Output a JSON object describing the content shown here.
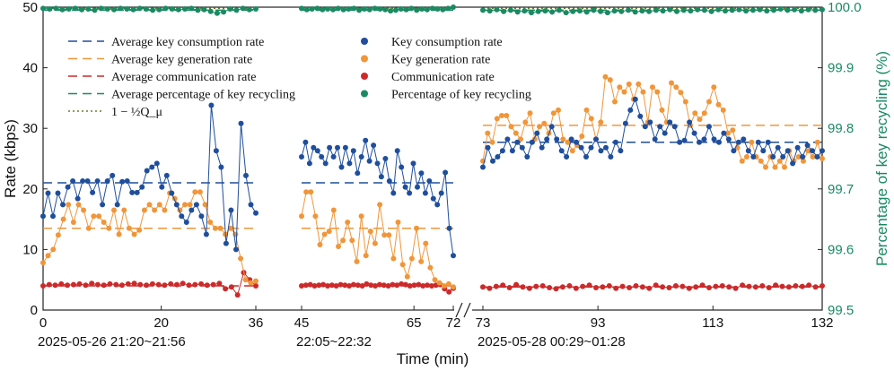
{
  "colors": {
    "kcr": "#1f4e9c",
    "kgr": "#f0963a",
    "comm": "#cc2a2a",
    "recyc": "#1a8a63",
    "recyc_axis": "#1a8a63"
  },
  "chart_data": {
    "type": "scatter",
    "title": "",
    "xlabel": "Time (min)",
    "ylabel_left": "Rate (kbps)",
    "ylabel_right": "Percentage of key recycling (%)",
    "ylim_left": [
      0,
      50
    ],
    "ylim_right": [
      99.5,
      100.0
    ],
    "left_ticks": [
      "0",
      "10",
      "20",
      "30",
      "40",
      "50"
    ],
    "right_ticks": [
      "99.5",
      "99.6",
      "99.7",
      "99.8",
      "99.9",
      "100.0"
    ],
    "grid": false,
    "legend_position": "top-left",
    "segments": [
      {
        "x_range": [
          0,
          36
        ],
        "x_ticks": [
          "0",
          "20",
          "36"
        ],
        "date_label": "2025-05-26 21:20~21:56",
        "key_consumption_rate": [
          15.5,
          19.3,
          15.5,
          19.3,
          17.4,
          20.3,
          21.3,
          18.4,
          21.3,
          21.3,
          19.4,
          21.3,
          17.4,
          21.3,
          22.2,
          17.4,
          21.2,
          21.3,
          19.4,
          19.4,
          20.3,
          23.0,
          23.6,
          24.2,
          20.3,
          22.2,
          19.3,
          17.4,
          15.5,
          14.5,
          16.5,
          17.4,
          15.5,
          12.5,
          33.8,
          26.3,
          23.6,
          11.0,
          16.5,
          10.0,
          30.8,
          22.2,
          17.4,
          16.0
        ],
        "key_generation_rate": [
          7.8,
          9.0,
          10.0,
          12.4,
          15.0,
          17.4,
          14.5,
          17.4,
          16.5,
          13.5,
          15.5,
          15.5,
          14.5,
          13.5,
          16.5,
          12.5,
          16.5,
          13.5,
          12.5,
          13.2,
          16.5,
          17.4,
          16.5,
          17.4,
          16.5,
          19.3,
          18.4,
          16.5,
          17.4,
          17.4,
          19.5,
          19.5,
          17.4,
          14.5,
          13.5,
          13.5,
          12.5,
          13.5,
          12.5,
          8.5,
          5.0,
          4.5,
          4.8
        ],
        "communication_rate": [
          4.0,
          4.2,
          4.1,
          4.3,
          4.1,
          4.2,
          4.3,
          4.1,
          4.4,
          4.2,
          4.1,
          4.3,
          4.2,
          4.1,
          4.3,
          4.4,
          4.2,
          4.1,
          4.3,
          4.2,
          4.1,
          4.3,
          4.2,
          4.4,
          4.1,
          4.2,
          4.3,
          4.1,
          4.2,
          4.4,
          3.5,
          3.8,
          2.5,
          6.2,
          5.0,
          4.0
        ],
        "key_recycling_pct": [
          99.998,
          99.997,
          99.998,
          99.996,
          99.997,
          99.998,
          99.996,
          99.997,
          99.995,
          99.998,
          99.997,
          99.996,
          99.998,
          99.997,
          99.996,
          99.998,
          99.997,
          99.995,
          99.996,
          99.998,
          99.997,
          99.996,
          99.997,
          99.998,
          99.995,
          99.996,
          99.993,
          99.99,
          99.992,
          99.997,
          99.995,
          99.998,
          99.996,
          99.997
        ],
        "avg_key_consumption": 21.0,
        "avg_key_generation": 13.5,
        "avg_communication": 4.0,
        "avg_recycling_pct": 99.995
      },
      {
        "x_range": [
          45,
          72
        ],
        "x_ticks": [
          "45",
          "65",
          "72"
        ],
        "date_label": "22:05~22:32",
        "key_consumption_rate": [
          25.3,
          27.7,
          24.2,
          26.8,
          26.3,
          25.3,
          24.2,
          26.8,
          25.3,
          26.8,
          23.6,
          26.8,
          24.2,
          26.3,
          22.6,
          25.3,
          28.0,
          24.6,
          27.2,
          24.2,
          22.0,
          25.0,
          21.3,
          19.3,
          26.3,
          23.6,
          20.3,
          19.3,
          24.2,
          20.3,
          22.6,
          19.3,
          21.3,
          18.4,
          17.4,
          19.3,
          22.7,
          13.5,
          9.0
        ],
        "key_generation_rate": [
          15.5,
          19.5,
          19.5,
          15.5,
          10.8,
          12.5,
          13.0,
          16.5,
          10.5,
          11.5,
          14.5,
          11.5,
          8.0,
          15.5,
          9.0,
          13.0,
          11.0,
          17.4,
          12.4,
          12.4,
          8.5,
          14.5,
          7.5,
          5.5,
          8.5,
          13.5,
          8.0,
          11.0,
          7.0,
          5.0,
          4.5,
          4.0,
          4.3,
          3.8
        ],
        "communication_rate": [
          4.0,
          4.1,
          4.2,
          4.0,
          4.1,
          4.2,
          4.0,
          4.1,
          4.0,
          4.2,
          4.1,
          4.0,
          4.2,
          4.1,
          4.0,
          4.3,
          4.1,
          4.0,
          4.2,
          4.1,
          4.0,
          4.2,
          4.1,
          4.3,
          4.2,
          4.0,
          4.1,
          4.2,
          4.0,
          4.1,
          4.0,
          4.1,
          4.2,
          3.5,
          3.0,
          3.6
        ],
        "key_recycling_pct": [
          99.998,
          99.996,
          99.997,
          99.998,
          99.996,
          99.997,
          99.996,
          99.998,
          99.996,
          99.997,
          99.998,
          99.995,
          99.997,
          99.996,
          99.998,
          99.997,
          99.996,
          99.994,
          99.995,
          99.997,
          99.996,
          99.998,
          99.995,
          99.997,
          99.996,
          99.998,
          99.997,
          99.996,
          99.998,
          100.0
        ],
        "avg_key_consumption": 21.0,
        "avg_key_generation": 13.5,
        "avg_communication": 4.0,
        "avg_recycling_pct": 99.995
      },
      {
        "x_range": [
          73,
          132
        ],
        "x_ticks": [
          "73",
          "93",
          "113",
          "132"
        ],
        "date_label": "2025-05-28 00:29~01:28",
        "key_consumption_rate": [
          23.6,
          26.8,
          24.6,
          25.3,
          26.3,
          28.2,
          26.3,
          27.7,
          26.8,
          25.3,
          27.7,
          29.2,
          26.8,
          28.2,
          30.3,
          28.2,
          26.3,
          25.3,
          28.2,
          27.7,
          26.8,
          25.3,
          26.8,
          28.2,
          26.3,
          26.8,
          25.3,
          27.7,
          26.3,
          30.8,
          33.0,
          34.8,
          32.0,
          30.3,
          31.0,
          28.2,
          30.3,
          29.2,
          31.0,
          30.3,
          27.7,
          28.0,
          31.0,
          29.2,
          27.7,
          28.2,
          30.3,
          28.2,
          27.7,
          29.2,
          28.2,
          26.3,
          27.7,
          28.2,
          26.3,
          25.3,
          27.7,
          26.3,
          27.7,
          25.3,
          26.8,
          25.3,
          26.3,
          24.2,
          26.8,
          25.3,
          27.2,
          26.3,
          25.3,
          26.3
        ],
        "key_generation_rate": [
          24.6,
          29.2,
          27.7,
          31.6,
          32.1,
          32.1,
          30.3,
          29.2,
          28.2,
          31.0,
          32.5,
          28.2,
          30.3,
          30.8,
          29.2,
          32.5,
          33.0,
          28.2,
          27.7,
          26.3,
          27.2,
          28.7,
          33.0,
          31.6,
          28.2,
          31.0,
          38.5,
          38.0,
          34.4,
          36.8,
          36.0,
          37.3,
          34.8,
          37.3,
          36.0,
          31.0,
          36.8,
          36.0,
          33.0,
          31.0,
          37.5,
          36.8,
          35.9,
          34.4,
          30.5,
          32.5,
          31.5,
          32.5,
          34.4,
          36.8,
          33.9,
          33.0,
          29.2,
          29.7,
          26.8,
          24.6,
          25.3,
          27.7,
          25.3,
          24.6,
          23.6,
          25.3,
          23.6,
          24.6,
          23.6,
          26.3,
          24.6,
          25.3,
          24.6,
          26.3,
          25.3,
          27.7,
          25.0
        ],
        "communication_rate": [
          3.8,
          3.6,
          3.9,
          4.1,
          3.7,
          4.2,
          3.8,
          3.6,
          3.9,
          4.0,
          3.7,
          3.5,
          3.8,
          4.0,
          3.6,
          3.9,
          4.1,
          3.7,
          3.8,
          4.0,
          3.6,
          3.9,
          3.7,
          4.0,
          3.8,
          3.6,
          4.1,
          3.8,
          3.7,
          4.0,
          3.9,
          3.6,
          3.8,
          4.1,
          3.7,
          3.9,
          4.0,
          3.8,
          3.6,
          4.1,
          3.9,
          3.8,
          4.0,
          3.7,
          4.1,
          3.9,
          3.8,
          4.0,
          3.9,
          4.1,
          3.8,
          4.0
        ],
        "key_recycling_pct": [
          99.995,
          99.994,
          99.996,
          99.993,
          99.995,
          99.992,
          99.994,
          99.991,
          99.993,
          99.994,
          99.992,
          99.995,
          99.991,
          99.993,
          99.994,
          99.992,
          99.995,
          99.993,
          99.991,
          99.994,
          99.993,
          99.995,
          99.992,
          99.994,
          99.993,
          99.995,
          99.994,
          99.996,
          99.993,
          99.995,
          99.994,
          99.996,
          99.995,
          99.993,
          99.996,
          99.994,
          99.995,
          99.996,
          99.994,
          99.995,
          99.996,
          99.994,
          99.995,
          99.997,
          99.995,
          99.996,
          99.994,
          99.996,
          99.995,
          99.996
        ],
        "avg_key_consumption": 27.7,
        "avg_key_generation": 30.5,
        "avg_communication": 3.8,
        "avg_recycling_pct": 99.995
      }
    ],
    "reference_line_pct": 99.998,
    "legend": [
      {
        "label": "Average key consumption rate",
        "style": "dashed",
        "series": "kcr"
      },
      {
        "label": "Key consumption rate",
        "style": "dot",
        "series": "kcr"
      },
      {
        "label": "Average key generation rate",
        "style": "dashed",
        "series": "kgr"
      },
      {
        "label": "Key generation rate",
        "style": "dot",
        "series": "kgr"
      },
      {
        "label": "Average communication rate",
        "style": "dashed",
        "series": "comm"
      },
      {
        "label": "Communication rate",
        "style": "dot",
        "series": "comm"
      },
      {
        "label": "Average percentage of key recycling",
        "style": "dashed",
        "series": "recyc"
      },
      {
        "label": "Percentage of key recycling",
        "style": "dot",
        "series": "recyc"
      },
      {
        "label": "1 − ½Q_μ",
        "style": "dotted",
        "series": "ref"
      }
    ]
  }
}
